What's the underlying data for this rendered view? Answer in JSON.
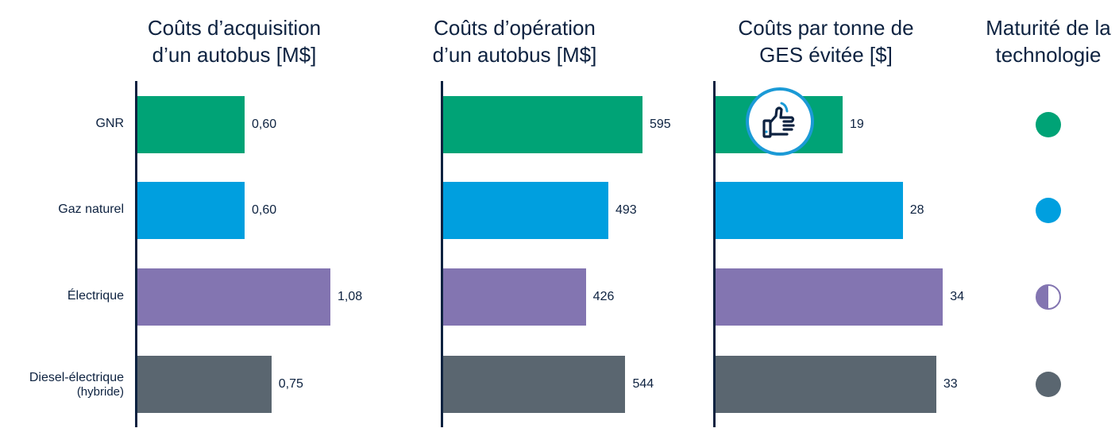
{
  "chart_data": [
    {
      "type": "bar",
      "orientation": "horizontal",
      "title": "Coûts d’acquisition\nd’un autobus [M$]",
      "categories": [
        "GNR",
        "Gaz naturel",
        "Électrique",
        "Diesel-électrique (hybride)"
      ],
      "values": [
        0.6,
        0.6,
        1.08,
        0.75
      ],
      "labels": [
        "0,60",
        "0,60",
        "1,08",
        "0,75"
      ],
      "xlim": [
        0,
        1.2
      ]
    },
    {
      "type": "bar",
      "orientation": "horizontal",
      "title": "Coûts d’opération\nd’un autobus [M$]",
      "categories": [
        "GNR",
        "Gaz naturel",
        "Électrique",
        "Diesel-électrique (hybride)"
      ],
      "values": [
        595,
        493,
        426,
        544
      ],
      "labels": [
        "595",
        "493",
        "426",
        "544"
      ],
      "xlim": [
        0,
        650
      ]
    },
    {
      "type": "bar",
      "orientation": "horizontal",
      "title": "Coûts par tonne de\nGES évitée [$]",
      "categories": [
        "GNR",
        "Gaz naturel",
        "Électrique",
        "Diesel-électrique (hybride)"
      ],
      "values": [
        19,
        28,
        34,
        33
      ],
      "labels": [
        "19",
        "28",
        "34",
        "33"
      ],
      "xlim": [
        0,
        40
      ],
      "annotation": "thumbs-up-icon on GNR"
    },
    {
      "type": "table",
      "title": "Maturité de la\ntechnologie",
      "categories": [
        "GNR",
        "Gaz naturel",
        "Électrique",
        "Diesel-électrique (hybride)"
      ],
      "values": [
        1,
        1,
        0.5,
        1
      ]
    }
  ],
  "categories": [
    {
      "label": "GNR",
      "sub": "",
      "color": "#00a376"
    },
    {
      "label": "Gaz naturel",
      "sub": "",
      "color": "#009fdf"
    },
    {
      "label": "Électrique",
      "sub": "",
      "color": "#8375b1"
    },
    {
      "label": "Diesel-électrique",
      "sub": "(hybride)",
      "color": "#5a6670"
    }
  ],
  "colors": {
    "axis": "#0d2240",
    "badge_ring": "#1b9ad6",
    "icon": "#0d2240"
  }
}
